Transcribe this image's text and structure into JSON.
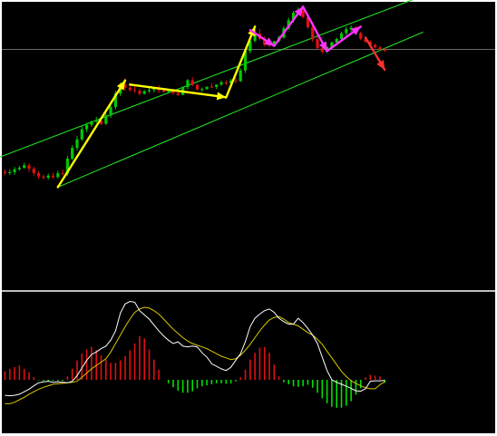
{
  "colors": {
    "background": "#000000",
    "frame": "#ffffff",
    "pane_separator": "#bfbfbf",
    "bull_candle": "#00c800",
    "bear_candle": "#e01010",
    "channel": "#22dd22",
    "price_line": "#8c8c8c",
    "arrow_yellow": "#ffff00",
    "arrow_magenta": "#ff33ff",
    "arrow_red": "#ff3030",
    "macd_line": "#ffffff",
    "signal_line": "#d8c800",
    "hist_pos": "#e01010",
    "hist_neg": "#00e000"
  },
  "chart_data": [
    {
      "type": "candlestick",
      "pane": "price",
      "price_range": [
        0,
        100
      ],
      "bar_count": 80,
      "candles": [
        {
          "o": 41.0,
          "h": 41.9,
          "c": 40.6,
          "l": 39.8
        },
        {
          "o": 40.6,
          "h": 41.8,
          "c": 40.9,
          "l": 39.9
        },
        {
          "o": 40.9,
          "h": 42.7,
          "c": 41.9,
          "l": 40.0
        },
        {
          "o": 41.9,
          "h": 43.1,
          "c": 42.4,
          "l": 41.4
        },
        {
          "o": 42.4,
          "h": 44.2,
          "c": 43.3,
          "l": 42.1
        },
        {
          "o": 43.3,
          "h": 44.0,
          "c": 42.1,
          "l": 41.0
        },
        {
          "o": 42.1,
          "h": 42.8,
          "c": 40.6,
          "l": 39.7
        },
        {
          "o": 40.6,
          "h": 41.3,
          "c": 39.4,
          "l": 38.5
        },
        {
          "o": 39.4,
          "h": 40.1,
          "c": 39.0,
          "l": 38.3
        },
        {
          "o": 39.0,
          "h": 40.4,
          "c": 39.7,
          "l": 38.3
        },
        {
          "o": 39.7,
          "h": 40.7,
          "c": 39.2,
          "l": 38.6
        },
        {
          "o": 39.2,
          "h": 41.4,
          "c": 40.5,
          "l": 38.7
        },
        {
          "o": 40.5,
          "h": 41.8,
          "c": 40.4,
          "l": 39.8
        },
        {
          "o": 40.4,
          "h": 46.6,
          "c": 45.6,
          "l": 39.5
        },
        {
          "o": 45.6,
          "h": 50.3,
          "c": 49.3,
          "l": 45.0
        },
        {
          "o": 49.3,
          "h": 53.5,
          "c": 52.3,
          "l": 48.4
        },
        {
          "o": 52.3,
          "h": 57.1,
          "c": 55.8,
          "l": 51.7
        },
        {
          "o": 55.8,
          "h": 58.1,
          "c": 57.3,
          "l": 54.8
        },
        {
          "o": 57.3,
          "h": 58.8,
          "c": 58.5,
          "l": 56.6
        },
        {
          "o": 58.5,
          "h": 60.1,
          "c": 58.8,
          "l": 57.9
        },
        {
          "o": 58.8,
          "h": 59.4,
          "c": 57.7,
          "l": 57.2
        },
        {
          "o": 57.7,
          "h": 61.4,
          "c": 60.6,
          "l": 57.3
        },
        {
          "o": 60.6,
          "h": 64.2,
          "c": 63.5,
          "l": 59.7
        },
        {
          "o": 63.5,
          "h": 69.1,
          "c": 68.2,
          "l": 62.6
        },
        {
          "o": 68.2,
          "h": 72.0,
          "c": 71.2,
          "l": 67.3
        },
        {
          "o": 71.2,
          "h": 73.5,
          "c": 70.2,
          "l": 69.2
        },
        {
          "o": 70.2,
          "h": 71.1,
          "c": 69.4,
          "l": 68.8
        },
        {
          "o": 69.4,
          "h": 70.6,
          "c": 69.1,
          "l": 68.4
        },
        {
          "o": 69.1,
          "h": 70.0,
          "c": 68.1,
          "l": 67.5
        },
        {
          "o": 68.1,
          "h": 69.4,
          "c": 69.0,
          "l": 67.8
        },
        {
          "o": 69.0,
          "h": 70.1,
          "c": 69.4,
          "l": 68.4
        },
        {
          "o": 69.4,
          "h": 70.5,
          "c": 70.0,
          "l": 68.5
        },
        {
          "o": 70.0,
          "h": 71.1,
          "c": 69.3,
          "l": 68.4
        },
        {
          "o": 69.3,
          "h": 69.9,
          "c": 68.8,
          "l": 68.3
        },
        {
          "o": 68.8,
          "h": 69.7,
          "c": 69.1,
          "l": 68.3
        },
        {
          "o": 69.1,
          "h": 69.8,
          "c": 68.3,
          "l": 67.8
        },
        {
          "o": 68.3,
          "h": 69.0,
          "c": 67.7,
          "l": 67.4
        },
        {
          "o": 67.7,
          "h": 70.7,
          "c": 70.4,
          "l": 67.6
        },
        {
          "o": 70.4,
          "h": 73.2,
          "c": 72.8,
          "l": 69.6
        },
        {
          "o": 72.8,
          "h": 73.9,
          "c": 71.1,
          "l": 70.7
        },
        {
          "o": 71.1,
          "h": 71.6,
          "c": 69.6,
          "l": 69.3
        },
        {
          "o": 69.6,
          "h": 70.3,
          "c": 69.7,
          "l": 68.8
        },
        {
          "o": 69.7,
          "h": 70.6,
          "c": 70.6,
          "l": 69.5
        },
        {
          "o": 70.6,
          "h": 71.9,
          "c": 70.5,
          "l": 70.0
        },
        {
          "o": 70.5,
          "h": 71.3,
          "c": 71.3,
          "l": 69.7
        },
        {
          "o": 71.3,
          "h": 72.7,
          "c": 72.1,
          "l": 70.8
        },
        {
          "o": 72.1,
          "h": 72.8,
          "c": 71.7,
          "l": 71.1
        },
        {
          "o": 71.7,
          "h": 73.3,
          "c": 72.7,
          "l": 71.0
        },
        {
          "o": 72.7,
          "h": 73.7,
          "c": 72.5,
          "l": 71.7
        },
        {
          "o": 72.5,
          "h": 77.0,
          "c": 76.2,
          "l": 72.2
        },
        {
          "o": 76.2,
          "h": 84.0,
          "c": 82.9,
          "l": 75.3
        },
        {
          "o": 82.9,
          "h": 87.2,
          "c": 86.5,
          "l": 82.1
        },
        {
          "o": 86.5,
          "h": 90.6,
          "c": 88.9,
          "l": 85.9
        },
        {
          "o": 88.9,
          "h": 90.5,
          "c": 87.1,
          "l": 86.6
        },
        {
          "o": 87.1,
          "h": 88.0,
          "c": 85.1,
          "l": 84.5
        },
        {
          "o": 85.1,
          "h": 86.3,
          "c": 84.9,
          "l": 84.3
        },
        {
          "o": 84.9,
          "h": 86.2,
          "c": 86.4,
          "l": 84.3
        },
        {
          "o": 86.4,
          "h": 88.2,
          "c": 87.6,
          "l": 85.9
        },
        {
          "o": 87.6,
          "h": 91.6,
          "c": 90.8,
          "l": 87.2
        },
        {
          "o": 90.8,
          "h": 94.5,
          "c": 93.6,
          "l": 90.3
        },
        {
          "o": 93.6,
          "h": 96.8,
          "c": 96.2,
          "l": 92.7
        },
        {
          "o": 96.2,
          "h": 98.0,
          "c": 97.0,
          "l": 95.5
        },
        {
          "o": 97.0,
          "h": 97.5,
          "c": 94.7,
          "l": 94.2
        },
        {
          "o": 94.7,
          "h": 95.3,
          "c": 91.2,
          "l": 90.6
        },
        {
          "o": 91.2,
          "h": 91.7,
          "c": 87.0,
          "l": 86.1
        },
        {
          "o": 87.0,
          "h": 87.9,
          "c": 84.0,
          "l": 83.3
        },
        {
          "o": 84.0,
          "h": 84.8,
          "c": 82.7,
          "l": 82.0
        },
        {
          "o": 82.7,
          "h": 84.4,
          "c": 84.4,
          "l": 82.3
        },
        {
          "o": 84.4,
          "h": 86.2,
          "c": 85.9,
          "l": 83.8
        },
        {
          "o": 85.9,
          "h": 87.6,
          "c": 87.1,
          "l": 85.3
        },
        {
          "o": 87.1,
          "h": 89.6,
          "c": 89.1,
          "l": 86.4
        },
        {
          "o": 89.1,
          "h": 91.3,
          "c": 90.5,
          "l": 88.4
        },
        {
          "o": 90.5,
          "h": 91.9,
          "c": 91.0,
          "l": 89.6
        },
        {
          "o": 91.0,
          "h": 91.4,
          "c": 89.1,
          "l": 88.5
        },
        {
          "o": 89.1,
          "h": 89.6,
          "c": 87.2,
          "l": 86.7
        },
        {
          "o": 87.2,
          "h": 87.8,
          "c": 86.1,
          "l": 85.7
        },
        {
          "o": 86.1,
          "h": 86.7,
          "c": 85.0,
          "l": 84.6
        },
        {
          "o": 85.0,
          "h": 85.5,
          "c": 84.2,
          "l": 83.9
        },
        {
          "o": 84.2,
          "h": 84.8,
          "c": 83.4,
          "l": 83.1
        },
        {
          "o": 83.4,
          "h": 84.0,
          "c": 83.0,
          "l": 82.6
        }
      ],
      "horizontal_price_line": 83.5,
      "channel_lines": [
        {
          "from": {
            "bar": -1,
            "price": 46.2
          },
          "to": {
            "bar": 87,
            "price": 102.1
          }
        },
        {
          "from": {
            "bar": 11,
            "price": 35.7
          },
          "to": {
            "bar": 87,
            "price": 89.5
          }
        }
      ],
      "arrows": [
        {
          "color_key": "arrow_yellow",
          "from": {
            "bar": 11,
            "price": 35.7
          },
          "to": {
            "bar": 25,
            "price": 72.7
          }
        },
        {
          "color_key": "arrow_yellow",
          "from": {
            "bar": 26,
            "price": 71.3
          },
          "to": {
            "bar": 46,
            "price": 66.9
          }
        },
        {
          "color_key": "arrow_yellow",
          "from": {
            "bar": 46,
            "price": 66.8
          },
          "to": {
            "bar": 52,
            "price": 91.4
          }
        },
        {
          "color_key": "arrow_magenta",
          "from": {
            "bar": 51,
            "price": 90.2
          },
          "to": {
            "bar": 56,
            "price": 84.7
          }
        },
        {
          "color_key": "arrow_magenta",
          "from": {
            "bar": 56,
            "price": 84.7
          },
          "to": {
            "bar": 62,
            "price": 98.3
          }
        },
        {
          "color_key": "arrow_magenta",
          "from": {
            "bar": 62,
            "price": 98.3
          },
          "to": {
            "bar": 67,
            "price": 82.9
          }
        },
        {
          "color_key": "arrow_magenta",
          "from": {
            "bar": 67,
            "price": 82.9
          },
          "to": {
            "bar": 74,
            "price": 91.4
          }
        },
        {
          "color_key": "arrow_red",
          "from": {
            "bar": 75,
            "price": 87.6
          },
          "to": {
            "bar": 79,
            "price": 76.4
          }
        }
      ]
    },
    {
      "type": "macd",
      "pane": "indicator",
      "range": [
        -1,
        1
      ],
      "zero_line": 0,
      "macd": [
        -0.31,
        -0.32,
        -0.31,
        -0.29,
        -0.24,
        -0.19,
        -0.12,
        -0.06,
        -0.04,
        -0.03,
        -0.05,
        -0.04,
        -0.05,
        -0.06,
        -0.03,
        0.05,
        0.14,
        0.23,
        0.3,
        0.33,
        0.37,
        0.4,
        0.47,
        0.58,
        0.79,
        0.9,
        0.93,
        0.92,
        0.82,
        0.77,
        0.72,
        0.65,
        0.58,
        0.52,
        0.47,
        0.43,
        0.45,
        0.4,
        0.39,
        0.4,
        0.39,
        0.32,
        0.27,
        0.19,
        0.16,
        0.13,
        0.11,
        0.15,
        0.23,
        0.31,
        0.45,
        0.63,
        0.73,
        0.78,
        0.82,
        0.84,
        0.8,
        0.73,
        0.69,
        0.66,
        0.66,
        0.73,
        0.68,
        0.61,
        0.53,
        0.43,
        0.27,
        0.11,
        0.0,
        -0.05,
        -0.09,
        -0.13,
        -0.17,
        -0.22,
        -0.23,
        -0.18,
        -0.03,
        -0.02,
        -0.02,
        -0.01
      ],
      "signal": [
        -0.48,
        -0.48,
        -0.45,
        -0.4,
        -0.35,
        -0.29,
        -0.24,
        -0.19,
        -0.15,
        -0.12,
        -0.09,
        -0.08,
        -0.07,
        -0.06,
        -0.05,
        -0.03,
        0.03,
        0.08,
        0.13,
        0.17,
        0.21,
        0.25,
        0.33,
        0.43,
        0.53,
        0.63,
        0.72,
        0.8,
        0.84,
        0.86,
        0.85,
        0.82,
        0.78,
        0.72,
        0.66,
        0.6,
        0.55,
        0.5,
        0.46,
        0.43,
        0.41,
        0.39,
        0.37,
        0.34,
        0.31,
        0.28,
        0.26,
        0.24,
        0.25,
        0.29,
        0.35,
        0.42,
        0.5,
        0.58,
        0.65,
        0.71,
        0.74,
        0.75,
        0.72,
        0.68,
        0.66,
        0.64,
        0.6,
        0.56,
        0.53,
        0.48,
        0.42,
        0.34,
        0.26,
        0.18,
        0.1,
        0.04,
        -0.02,
        -0.07,
        -0.12,
        -0.16,
        -0.18,
        -0.18,
        -0.1,
        -0.04
      ],
      "histogram": [
        0.1,
        0.13,
        0.15,
        0.17,
        0.13,
        0.09,
        0.03,
        -0.01,
        -0.02,
        -0.03,
        -0.02,
        -0.02,
        -0.02,
        0.04,
        0.13,
        0.23,
        0.31,
        0.36,
        0.39,
        0.35,
        0.29,
        0.24,
        0.2,
        0.2,
        0.23,
        0.28,
        0.35,
        0.43,
        0.52,
        0.49,
        0.36,
        0.24,
        0.12,
        0.0,
        -0.07,
        -0.15,
        -0.22,
        -0.26,
        -0.26,
        -0.23,
        -0.17,
        -0.13,
        -0.11,
        -0.09,
        -0.07,
        -0.07,
        -0.08,
        -0.07,
        -0.03,
        0.03,
        0.12,
        0.24,
        0.32,
        0.38,
        0.39,
        0.32,
        0.18,
        0.04,
        -0.05,
        -0.09,
        -0.13,
        -0.14,
        -0.13,
        -0.1,
        -0.16,
        -0.26,
        -0.37,
        -0.47,
        -0.54,
        -0.56,
        -0.56,
        -0.52,
        -0.43,
        -0.3,
        -0.17,
        0.03,
        0.06,
        0.05,
        0.04,
        -0.06
      ]
    }
  ]
}
